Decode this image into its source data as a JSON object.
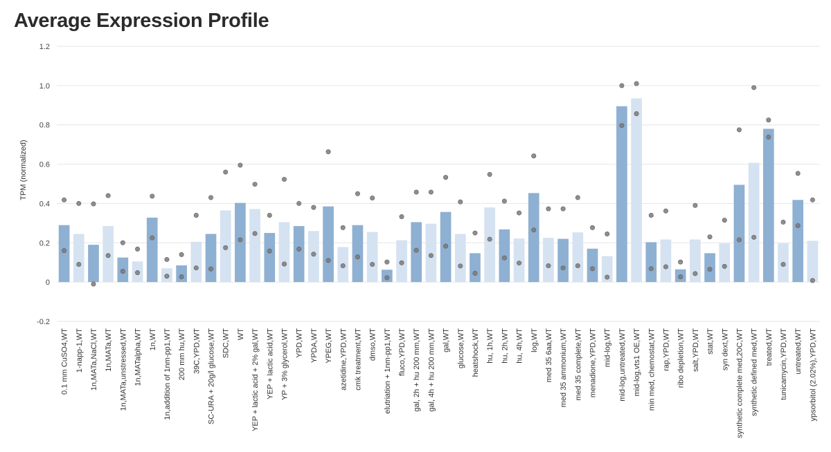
{
  "title": "Average Expression Profile",
  "chart_data": {
    "type": "bar",
    "title": "Average Expression Profile",
    "ylabel": "TPM (normalized)",
    "xlabel": "",
    "ylim": [
      -0.2,
      1.2
    ],
    "yticks": [
      -0.2,
      0,
      0.2,
      0.4,
      0.6,
      0.8,
      1.0,
      1.2
    ],
    "yticklabels": [
      "-0.2",
      "0",
      "0.2",
      "0.4",
      "0.6",
      "0.8",
      "1.0",
      "1.2"
    ],
    "grid": true,
    "legend": "none",
    "colors": {
      "bar_dark": "#8eb0d2",
      "bar_light": "#d5e2f1",
      "dot": "#7a7a7a",
      "grid": "#e6e6e6"
    },
    "categories": [
      "0.1 mm CuSO4,WT",
      "1-napp-1,WT",
      "1n,MATa,NaCl,WT",
      "1n,MATa,WT",
      "1n,MATa,unstressed,WT",
      "1n,MATalpha,WT",
      "1n,WT",
      "1n,addition of 1nm-pp1,WT",
      "200 mm hu,WT",
      "39C,YPD,WT",
      "SC-URA + 20g/l glucose,WT",
      "SDC,WT",
      "WT",
      "YEP + lactic acid + 2% gal,WT",
      "YEP + lactic acid,WT",
      "YP + 3% glycerol,WT",
      "YPD,WT",
      "YPDA,WT",
      "YPEG,WT",
      "azetidine,YPD,WT",
      "cmk treatment,WT",
      "dmso,WT",
      "elutriation + 1nm-pp1,WT",
      "fluco,YPD,WT",
      "gal, 2h + hu 200 mm,WT",
      "gal, 4h + hu 200 mm,WT",
      "gal,WT",
      "glucose,WT",
      "heatshock,WT",
      "hu, 1h,WT",
      "hu, 2h,WT",
      "hu, 4h,WT",
      "log,WT",
      "med 35 6aa,WT",
      "med 35 ammonium,WT",
      "med 35 complete,WT",
      "menadione,YPD,WT",
      "mid-log,WT",
      "mid-log,untreated,WT",
      "mid-log,vts1 OE,WT",
      "min med, chemostat,WT",
      "rap,YPD,WT",
      "ribo depletion,WT",
      "salt,YPD,WT",
      "stat,WT",
      "syn dext,WT",
      "synthetic complete med,20C,WT",
      "synthetic defined med,WT",
      "treated,WT",
      "tunicamycin,YPD,WT",
      "untreated,WT",
      "ypsorbitol (2.02%),YPD,WT"
    ],
    "values": [
      0.29,
      0.245,
      0.19,
      0.285,
      0.125,
      0.105,
      0.328,
      0.07,
      0.085,
      0.205,
      0.245,
      0.365,
      0.403,
      0.372,
      0.25,
      0.305,
      0.285,
      0.26,
      0.385,
      0.178,
      0.29,
      0.255,
      0.063,
      0.213,
      0.305,
      0.297,
      0.357,
      0.245,
      0.147,
      0.38,
      0.268,
      0.222,
      0.453,
      0.225,
      0.22,
      0.253,
      0.17,
      0.132,
      0.895,
      0.935,
      0.203,
      0.217,
      0.065,
      0.217,
      0.147,
      0.197,
      0.495,
      0.607,
      0.78,
      0.197,
      0.418,
      0.21
    ],
    "points_high": [
      0.418,
      0.4,
      0.398,
      0.44,
      0.2,
      0.168,
      0.437,
      0.115,
      0.14,
      0.34,
      0.43,
      0.56,
      0.595,
      0.498,
      0.34,
      0.523,
      0.4,
      0.38,
      0.663,
      0.277,
      0.45,
      0.428,
      0.102,
      0.333,
      0.458,
      0.458,
      0.533,
      0.408,
      0.25,
      0.548,
      0.412,
      0.352,
      0.642,
      0.373,
      0.373,
      0.43,
      0.277,
      0.245,
      1.0,
      1.01,
      0.34,
      0.362,
      0.102,
      0.39,
      0.23,
      0.315,
      0.775,
      0.99,
      0.825,
      0.305,
      0.553,
      0.418
    ],
    "points_low": [
      0.16,
      0.09,
      -0.01,
      0.135,
      0.055,
      0.048,
      0.225,
      0.03,
      0.027,
      0.072,
      0.067,
      0.175,
      0.215,
      0.247,
      0.158,
      0.092,
      0.168,
      0.142,
      0.11,
      0.083,
      0.128,
      0.09,
      0.022,
      0.098,
      0.162,
      0.135,
      0.183,
      0.082,
      0.045,
      0.218,
      0.123,
      0.097,
      0.265,
      0.083,
      0.072,
      0.083,
      0.068,
      0.025,
      0.797,
      0.857,
      0.068,
      0.078,
      0.027,
      0.043,
      0.065,
      0.08,
      0.215,
      0.228,
      0.738,
      0.09,
      0.287,
      0.008
    ]
  }
}
